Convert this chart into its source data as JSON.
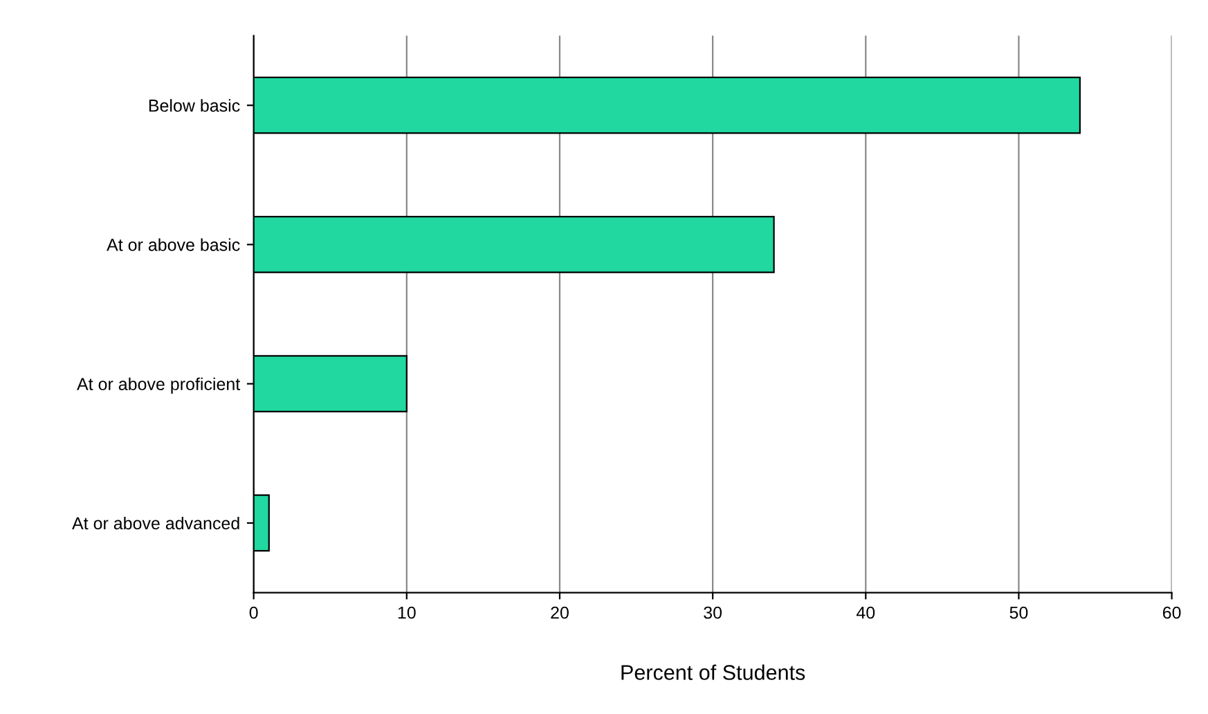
{
  "chart_data": {
    "type": "bar",
    "orientation": "horizontal",
    "xlabel": "Percent of Students",
    "categories": [
      "Below basic",
      "At or above basic",
      "At or above proficient",
      "At or above advanced"
    ],
    "values": [
      54,
      34,
      10,
      1
    ],
    "color": "#20d8a0",
    "xlim": [
      0,
      60
    ],
    "xticks": [
      0,
      10,
      20,
      30,
      40,
      50,
      60
    ],
    "grid": "x"
  }
}
